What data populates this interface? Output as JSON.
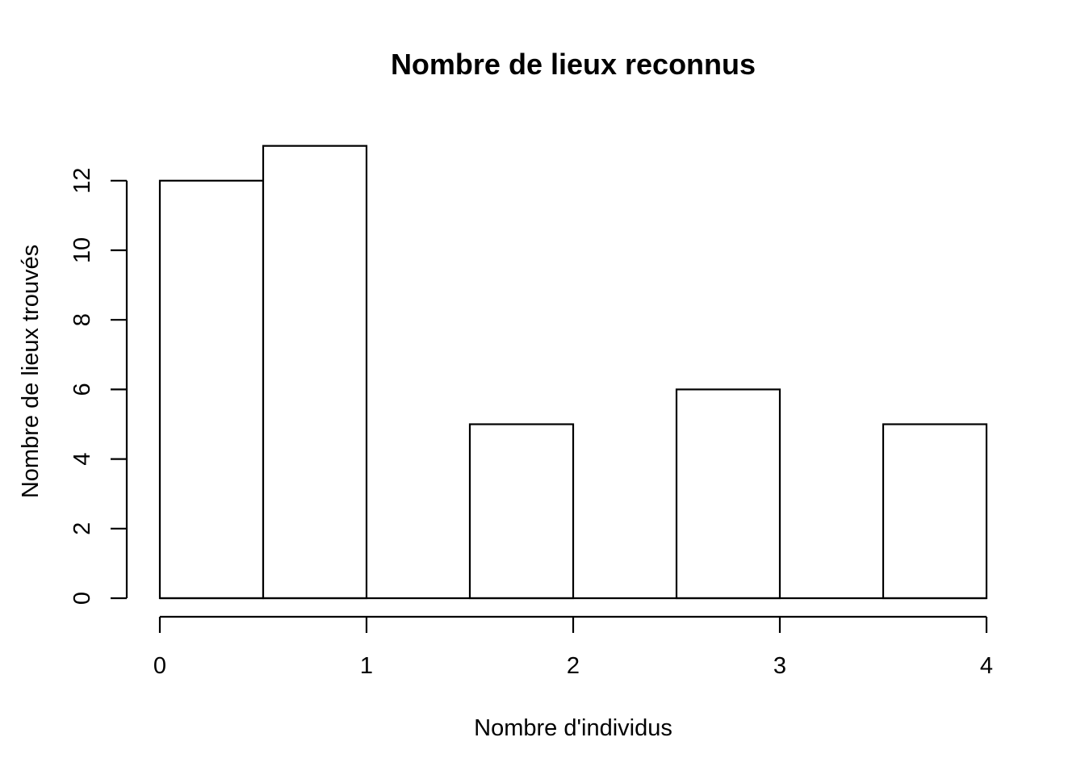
{
  "chart_data": {
    "type": "bar",
    "title": "Nombre de lieux reconnus",
    "xlabel": "Nombre d'individus",
    "ylabel": "Nombre de lieux trouvés",
    "bins": [
      {
        "x0": 0.0,
        "x1": 0.5,
        "count": 12
      },
      {
        "x0": 0.5,
        "x1": 1.0,
        "count": 13
      },
      {
        "x0": 1.0,
        "x1": 1.5,
        "count": 0
      },
      {
        "x0": 1.5,
        "x1": 2.0,
        "count": 5
      },
      {
        "x0": 2.0,
        "x1": 2.5,
        "count": 0
      },
      {
        "x0": 2.5,
        "x1": 3.0,
        "count": 6
      },
      {
        "x0": 3.0,
        "x1": 3.5,
        "count": 0
      },
      {
        "x0": 3.5,
        "x1": 4.0,
        "count": 5
      }
    ],
    "xticks": [
      "0",
      "1",
      "2",
      "3",
      "4"
    ],
    "yticks": [
      "0",
      "2",
      "4",
      "6",
      "8",
      "10",
      "12"
    ],
    "xlim": [
      0,
      4
    ],
    "ylim": [
      0,
      13
    ],
    "grid": false,
    "colors": {
      "bar_fill": "#ffffff",
      "bar_stroke": "#000000"
    }
  }
}
